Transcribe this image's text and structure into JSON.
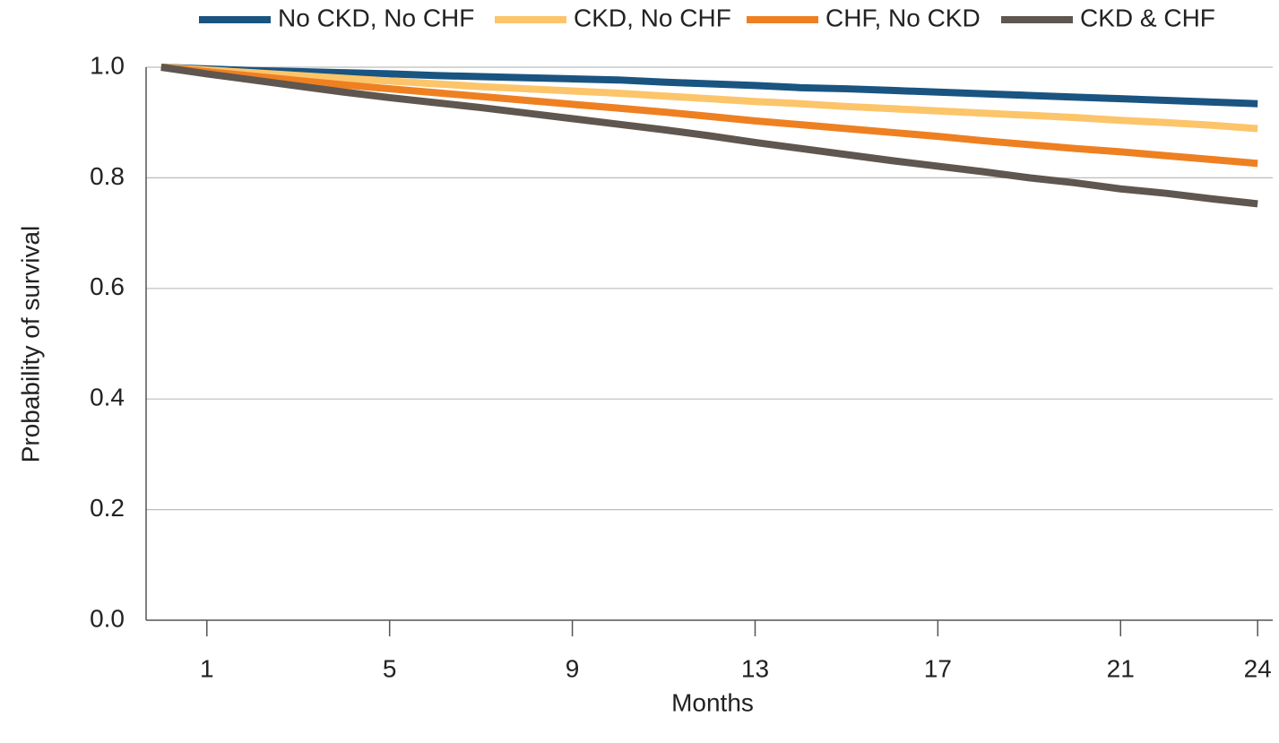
{
  "chart_data": {
    "type": "line",
    "x_label": "Months",
    "y_label": "Probability of survival",
    "x": [
      0,
      1,
      2,
      3,
      4,
      5,
      6,
      7,
      8,
      9,
      10,
      11,
      12,
      13,
      14,
      15,
      16,
      17,
      18,
      19,
      20,
      21,
      22,
      23,
      24
    ],
    "series": [
      {
        "name": "No CKD, No CHF",
        "color": "#1a5481",
        "values": [
          1.0,
          0.997,
          0.994,
          0.992,
          0.99,
          0.988,
          0.985,
          0.983,
          0.981,
          0.979,
          0.977,
          0.973,
          0.97,
          0.967,
          0.963,
          0.961,
          0.958,
          0.955,
          0.952,
          0.949,
          0.946,
          0.943,
          0.94,
          0.937,
          0.934
        ]
      },
      {
        "name": "CKD, No CHF",
        "color": "#fcc56a",
        "values": [
          1.0,
          0.995,
          0.99,
          0.985,
          0.98,
          0.975,
          0.97,
          0.965,
          0.961,
          0.957,
          0.953,
          0.948,
          0.943,
          0.938,
          0.934,
          0.929,
          0.925,
          0.921,
          0.917,
          0.913,
          0.909,
          0.904,
          0.9,
          0.895,
          0.889
        ]
      },
      {
        "name": "CHF, No CKD",
        "color": "#ee8022",
        "values": [
          1.0,
          0.992,
          0.984,
          0.976,
          0.968,
          0.961,
          0.954,
          0.947,
          0.94,
          0.933,
          0.926,
          0.919,
          0.911,
          0.903,
          0.896,
          0.889,
          0.882,
          0.875,
          0.867,
          0.86,
          0.853,
          0.847,
          0.84,
          0.833,
          0.826
        ]
      },
      {
        "name": "CKD & CHF",
        "color": "#5f5650",
        "values": [
          1.0,
          0.988,
          0.977,
          0.966,
          0.955,
          0.945,
          0.936,
          0.927,
          0.917,
          0.907,
          0.897,
          0.887,
          0.876,
          0.864,
          0.853,
          0.842,
          0.831,
          0.821,
          0.811,
          0.8,
          0.791,
          0.78,
          0.772,
          0.762,
          0.753
        ]
      }
    ],
    "xlim": [
      -0.33,
      24.33
    ],
    "xticks": [
      1,
      5,
      9,
      13,
      17,
      21,
      24
    ],
    "ylim": [
      0,
      1
    ],
    "yticks": [
      {
        "value": 0,
        "label": "0.0"
      },
      0.2,
      0.4,
      0.6,
      0.8,
      {
        "value": 1,
        "label": "1.0"
      }
    ],
    "grid": true,
    "legend": "top"
  }
}
